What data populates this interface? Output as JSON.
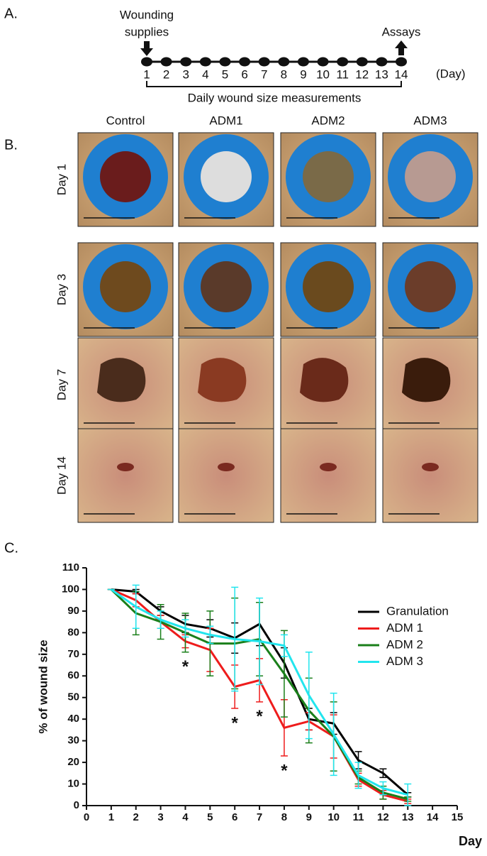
{
  "panel_a": {
    "label": "A.",
    "start_label": [
      "Wounding",
      "supplies"
    ],
    "end_label": "Assays",
    "days": [
      "1",
      "2",
      "3",
      "4",
      "5",
      "6",
      "7",
      "8",
      "9",
      "10",
      "11",
      "12",
      "13",
      "14"
    ],
    "unit": "(Day)",
    "bracket_label": "Daily wound size measurements"
  },
  "panel_b": {
    "label": "B.",
    "columns": [
      "Control",
      "ADM1",
      "ADM2",
      "ADM3"
    ],
    "rows": [
      "Day 1",
      "Day 3",
      "Day 7",
      "Day 14"
    ]
  },
  "chart_data": {
    "type": "line",
    "label": "C.",
    "x_label": "Day",
    "y_label": "% of wound size",
    "x": [
      1,
      2,
      3,
      4,
      5,
      6,
      7,
      8,
      9,
      10,
      11,
      12,
      13
    ],
    "series": [
      {
        "name": "Granulation",
        "color": "#000000",
        "values": [
          100,
          99,
          90,
          84,
          82,
          77.5,
          84,
          66,
          40,
          38,
          21,
          15,
          5
        ],
        "errors": [
          0,
          1,
          2,
          4,
          4,
          7,
          10,
          7,
          5,
          5,
          4,
          2,
          1
        ]
      },
      {
        "name": "ADM 1",
        "color": "#ee1c1c",
        "values": [
          100,
          95,
          85,
          76,
          72,
          55,
          58,
          36,
          39,
          32,
          12,
          5,
          2
        ],
        "errors": [
          0,
          3,
          3,
          3,
          10,
          10,
          10,
          13,
          4,
          10,
          3,
          2,
          1
        ]
      },
      {
        "name": "ADM 2",
        "color": "#1a7f1a",
        "values": [
          100,
          89,
          85,
          80,
          75,
          75,
          77,
          61,
          44,
          32,
          13,
          6,
          3
        ],
        "errors": [
          0,
          10,
          8,
          9,
          15,
          21,
          17,
          20,
          15,
          16,
          3,
          3,
          1
        ]
      },
      {
        "name": "ADM 3",
        "color": "#22e5ee",
        "values": [
          100,
          92,
          86,
          82,
          79,
          77,
          76,
          74,
          51,
          33,
          14,
          8,
          5
        ],
        "errors": [
          0,
          10,
          4,
          4,
          4,
          24,
          20,
          5,
          20,
          19,
          6,
          3,
          5
        ]
      }
    ],
    "annotations": [
      {
        "text": "*",
        "x": 4
      },
      {
        "text": "*",
        "x": 6
      },
      {
        "text": "*",
        "x": 7
      },
      {
        "text": "*",
        "x": 8
      }
    ],
    "xlim": [
      0,
      15
    ],
    "ylim": [
      0,
      110
    ],
    "xticks": [
      0,
      1,
      2,
      3,
      4,
      5,
      6,
      7,
      8,
      9,
      10,
      11,
      12,
      13,
      14,
      15
    ],
    "yticks": [
      0,
      10,
      20,
      30,
      40,
      50,
      60,
      70,
      80,
      90,
      100,
      110
    ],
    "legend": "upper right",
    "grid": false
  }
}
